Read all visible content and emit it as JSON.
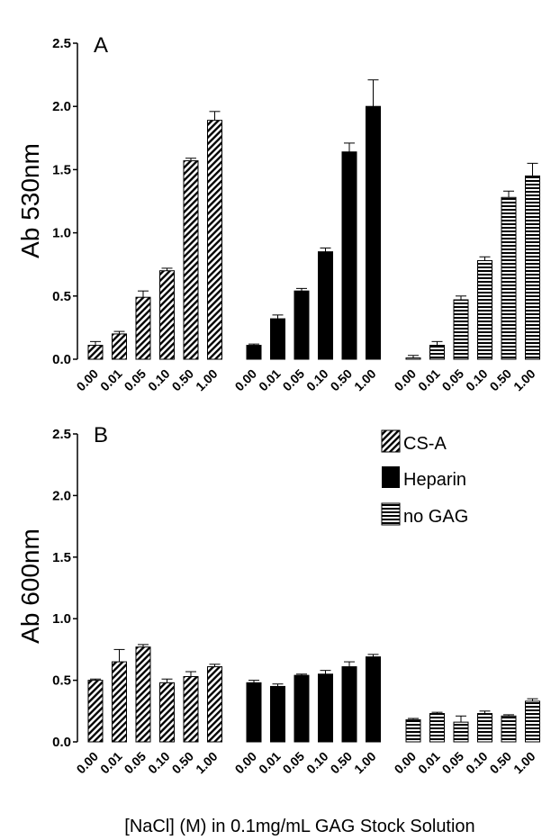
{
  "chart_data": [
    {
      "type": "bar",
      "panel": "A",
      "ylabel": "Ab 530nm",
      "ylim": [
        0,
        2.5
      ],
      "yticks": [
        "0.0",
        "0.5",
        "1.0",
        "1.5",
        "2.0",
        "2.5"
      ],
      "categories": [
        "0.00",
        "0.01",
        "0.05",
        "0.10",
        "0.50",
        "1.00"
      ],
      "series": [
        {
          "name": "CS-A",
          "pattern": "diagonal",
          "values": [
            0.11,
            0.2,
            0.49,
            0.7,
            1.57,
            1.89
          ],
          "errors": [
            0.03,
            0.02,
            0.05,
            0.02,
            0.02,
            0.07
          ]
        },
        {
          "name": "Heparin",
          "pattern": "solid",
          "values": [
            0.11,
            0.32,
            0.54,
            0.85,
            1.64,
            2.0
          ],
          "errors": [
            0.01,
            0.03,
            0.02,
            0.03,
            0.07,
            0.21
          ]
        },
        {
          "name": "no GAG",
          "pattern": "horizontal",
          "values": [
            0.01,
            0.11,
            0.47,
            0.78,
            1.28,
            1.45
          ],
          "errors": [
            0.02,
            0.03,
            0.03,
            0.03,
            0.05,
            0.1
          ]
        }
      ]
    },
    {
      "type": "bar",
      "panel": "B",
      "ylabel": "Ab 600nm",
      "ylim": [
        0,
        2.5
      ],
      "yticks": [
        "0.0",
        "0.5",
        "1.0",
        "1.5",
        "2.0",
        "2.5"
      ],
      "categories": [
        "0.00",
        "0.01",
        "0.05",
        "0.10",
        "0.50",
        "1.00"
      ],
      "legend_position": "top-right",
      "series": [
        {
          "name": "CS-A",
          "pattern": "diagonal",
          "values": [
            0.5,
            0.65,
            0.77,
            0.48,
            0.53,
            0.61
          ],
          "errors": [
            0.01,
            0.1,
            0.02,
            0.03,
            0.04,
            0.02
          ]
        },
        {
          "name": "Heparin",
          "pattern": "solid",
          "values": [
            0.48,
            0.45,
            0.54,
            0.55,
            0.61,
            0.69
          ],
          "errors": [
            0.02,
            0.02,
            0.01,
            0.03,
            0.04,
            0.02
          ]
        },
        {
          "name": "no GAG",
          "pattern": "horizontal",
          "values": [
            0.18,
            0.23,
            0.16,
            0.23,
            0.21,
            0.33
          ],
          "errors": [
            0.01,
            0.01,
            0.05,
            0.02,
            0.01,
            0.02
          ]
        }
      ]
    }
  ],
  "legend": {
    "entries": [
      {
        "name": "CS-A",
        "pattern": "diagonal"
      },
      {
        "name": "Heparin",
        "pattern": "solid"
      },
      {
        "name": "no GAG",
        "pattern": "horizontal"
      }
    ]
  },
  "xlabel": "[NaCl] (M) in 0.1mg/mL GAG Stock Solution",
  "colors": {
    "ink": "#000000",
    "background": "#ffffff"
  }
}
